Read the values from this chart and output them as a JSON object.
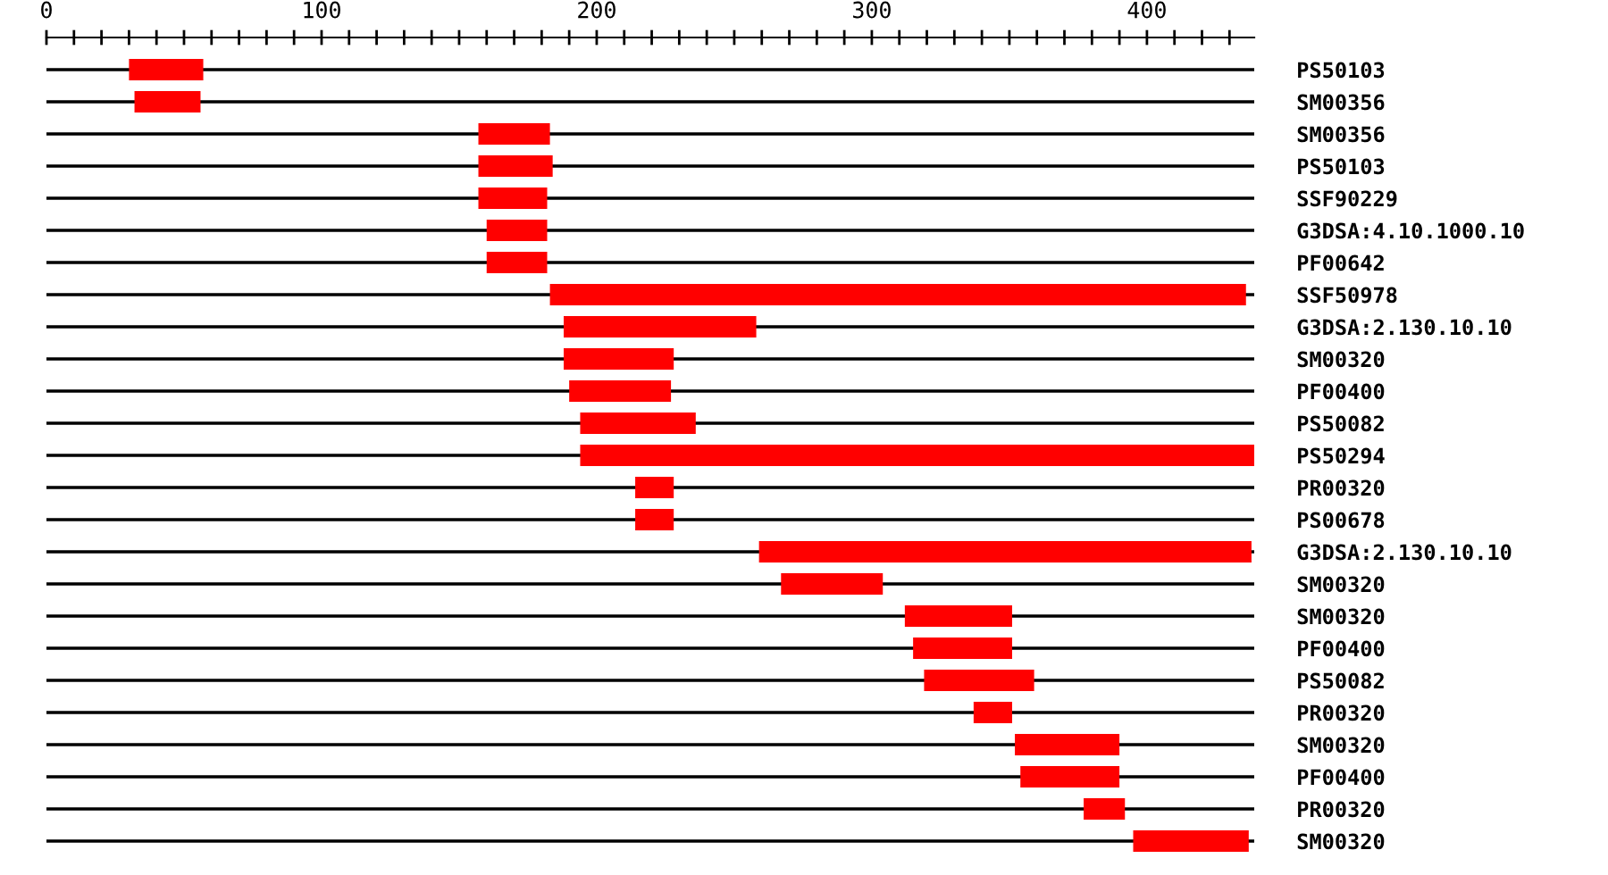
{
  "chart_data": {
    "type": "bar",
    "orientation": "horizontal",
    "categories": [
      "PS50103",
      "SM00356",
      "SM00356",
      "PS50103",
      "SSF90229",
      "G3DSA:4.10.1000.10",
      "PF00642",
      "SSF50978",
      "G3DSA:2.130.10.10",
      "SM00320",
      "PF00400",
      "PS50082",
      "PS50294",
      "PR00320",
      "PS00678",
      "G3DSA:2.130.10.10",
      "SM00320",
      "SM00320",
      "PF00400",
      "PS50082",
      "PR00320",
      "SM00320",
      "PF00400",
      "PR00320",
      "SM00320"
    ],
    "base": [
      30,
      32,
      157,
      157,
      157,
      160,
      160,
      183,
      188,
      188,
      190,
      194,
      194,
      214,
      214,
      259,
      267,
      312,
      315,
      319,
      337,
      352,
      354,
      377,
      395
    ],
    "values": [
      27,
      24,
      26,
      27,
      25,
      22,
      22,
      253,
      70,
      40,
      37,
      42,
      245,
      14,
      14,
      179,
      37,
      39,
      36,
      40,
      14,
      38,
      36,
      15,
      42
    ],
    "color": "#ff0000",
    "xlim": [
      0,
      439
    ],
    "xticks": [
      0,
      {
        "value": 10,
        "label": null
      },
      {
        "value": 20,
        "label": null
      },
      {
        "value": 30,
        "label": null
      },
      {
        "value": 40,
        "label": null
      },
      {
        "value": 50,
        "label": null
      },
      {
        "value": 60,
        "label": null
      },
      {
        "value": 70,
        "label": null
      },
      {
        "value": 80,
        "label": null
      },
      {
        "value": 90,
        "label": null
      },
      100,
      {
        "value": 110,
        "label": null
      },
      {
        "value": 120,
        "label": null
      },
      {
        "value": 130,
        "label": null
      },
      {
        "value": 140,
        "label": null
      },
      {
        "value": 150,
        "label": null
      },
      {
        "value": 160,
        "label": null
      },
      {
        "value": 170,
        "label": null
      },
      {
        "value": 180,
        "label": null
      },
      {
        "value": 190,
        "label": null
      },
      200,
      {
        "value": 210,
        "label": null
      },
      {
        "value": 220,
        "label": null
      },
      {
        "value": 230,
        "label": null
      },
      {
        "value": 240,
        "label": null
      },
      {
        "value": 250,
        "label": null
      },
      {
        "value": 260,
        "label": null
      },
      {
        "value": 270,
        "label": null
      },
      {
        "value": 280,
        "label": null
      },
      {
        "value": 290,
        "label": null
      },
      300,
      {
        "value": 310,
        "label": null
      },
      {
        "value": 320,
        "label": null
      },
      {
        "value": 330,
        "label": null
      },
      {
        "value": 340,
        "label": null
      },
      {
        "value": 350,
        "label": null
      },
      {
        "value": 360,
        "label": null
      },
      {
        "value": 370,
        "label": null
      },
      {
        "value": 380,
        "label": null
      },
      {
        "value": 390,
        "label": null
      },
      400,
      {
        "value": 410,
        "label": null
      },
      {
        "value": 420,
        "label": null
      },
      {
        "value": 430,
        "label": null
      }
    ],
    "grid": "y"
  }
}
